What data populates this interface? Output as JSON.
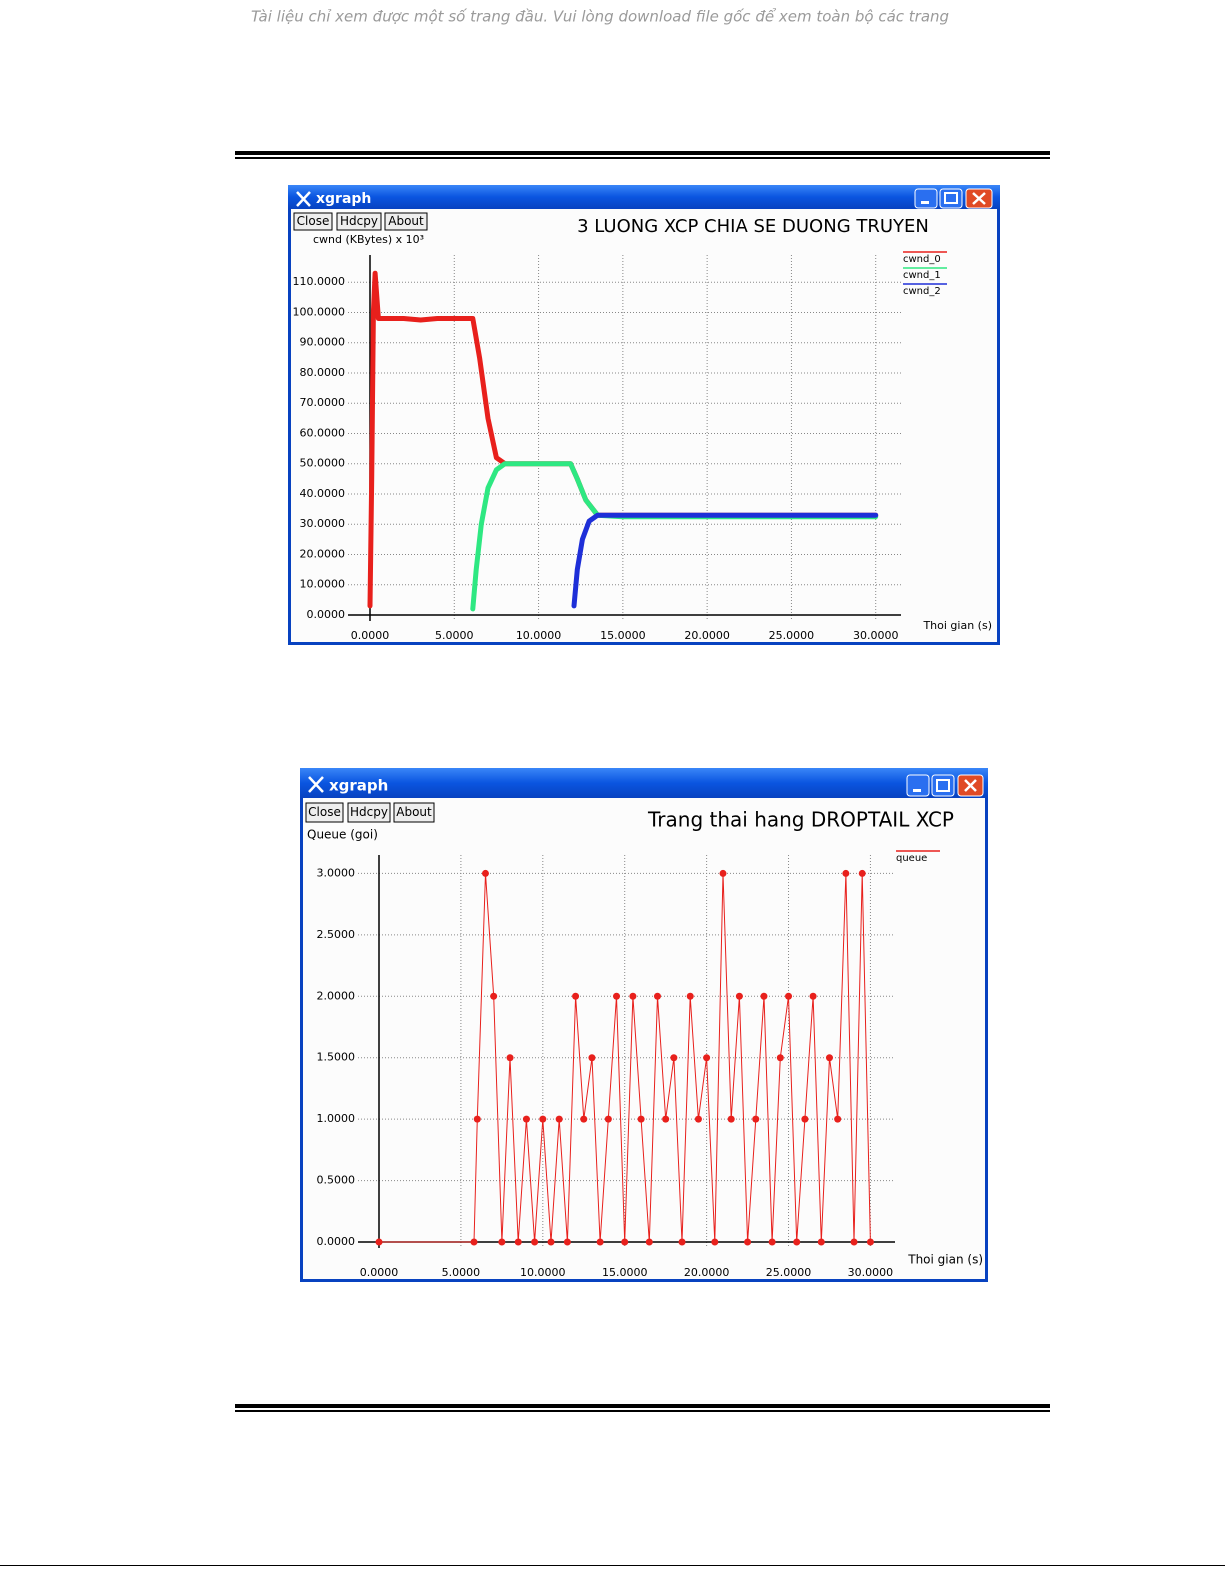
{
  "notice": "Tài liệu chỉ xem được một số trang đầu. Vui lòng download file gốc để xem toàn bộ các trang",
  "chart_data": [
    {
      "type": "line",
      "window_title": "xgraph",
      "buttons": [
        "Close",
        "Hdcpy",
        "About"
      ],
      "title": "3 LUONG XCP CHIA SE DUONG TRUYEN",
      "y_label": "cwnd (KBytes) x 10³",
      "x_label": "Thoi gian (s)",
      "grid": true,
      "markers": false,
      "legend": "top-right",
      "xlim": [
        0,
        31.5
      ],
      "ylim": [
        0,
        119
      ],
      "xticks": [
        {
          "value": 0,
          "label": "0.0000"
        },
        {
          "value": 5,
          "label": "5.0000"
        },
        {
          "value": 10,
          "label": "10.0000"
        },
        {
          "value": 15,
          "label": "15.0000"
        },
        {
          "value": 20,
          "label": "20.0000"
        },
        {
          "value": 25,
          "label": "25.0000"
        },
        {
          "value": 30,
          "label": "30.0000"
        }
      ],
      "yticks": [
        {
          "value": 0,
          "label": "0.0000"
        },
        {
          "value": 10,
          "label": "10.0000"
        },
        {
          "value": 20,
          "label": "20.0000"
        },
        {
          "value": 30,
          "label": "30.0000"
        },
        {
          "value": 40,
          "label": "40.0000"
        },
        {
          "value": 50,
          "label": "50.0000"
        },
        {
          "value": 60,
          "label": "60.0000"
        },
        {
          "value": 70,
          "label": "70.0000"
        },
        {
          "value": 80,
          "label": "80.0000"
        },
        {
          "value": 90,
          "label": "90.0000"
        },
        {
          "value": 100,
          "label": "100.0000"
        },
        {
          "value": 110,
          "label": "110.0000"
        }
      ],
      "series": [
        {
          "name": "cwnd_0",
          "color": "#e8201c",
          "x": [
            0,
            0.1,
            0.2,
            0.3,
            0.5,
            1,
            2,
            3,
            4,
            5,
            6,
            6.1,
            6.5,
            7,
            7.5,
            8,
            9,
            10,
            11,
            11.9,
            12.3,
            12.8,
            13.5,
            15,
            20,
            25,
            30
          ],
          "values": [
            3,
            45,
            100,
            113,
            98,
            98,
            98,
            97.5,
            98,
            98,
            98,
            98,
            85,
            65,
            52,
            50,
            50,
            50,
            50,
            50,
            45,
            38,
            33,
            33,
            33,
            33,
            33
          ]
        },
        {
          "name": "cwnd_1",
          "color": "#2ee882",
          "x": [
            6.1,
            6.3,
            6.6,
            7,
            7.5,
            8,
            9,
            10,
            11,
            11.9,
            12.3,
            12.8,
            13.5,
            15,
            20,
            25,
            30
          ],
          "values": [
            2,
            15,
            30,
            42,
            48,
            50,
            50,
            50,
            50,
            50,
            45,
            38,
            33,
            32.5,
            32.5,
            32.5,
            32.5
          ]
        },
        {
          "name": "cwnd_2",
          "color": "#1e2fd8",
          "x": [
            12.1,
            12.3,
            12.6,
            13,
            13.5,
            14,
            15,
            20,
            25,
            30
          ],
          "values": [
            3,
            15,
            25,
            31,
            33,
            33,
            33,
            33,
            33,
            33
          ]
        }
      ]
    },
    {
      "type": "line",
      "window_title": "xgraph",
      "buttons": [
        "Close",
        "Hdcpy",
        "About"
      ],
      "title": "Trang thai hang DROPTAIL XCP",
      "y_label": "Queue (goi)",
      "x_label": "Thoi gian (s)",
      "grid": true,
      "markers": true,
      "legend": "top-right",
      "xlim": [
        0,
        31.5
      ],
      "ylim": [
        0,
        3.15
      ],
      "xticks": [
        {
          "value": 0,
          "label": "0.0000"
        },
        {
          "value": 5,
          "label": "5.0000"
        },
        {
          "value": 10,
          "label": "10.0000"
        },
        {
          "value": 15,
          "label": "15.0000"
        },
        {
          "value": 20,
          "label": "20.0000"
        },
        {
          "value": 25,
          "label": "25.0000"
        },
        {
          "value": 30,
          "label": "30.0000"
        }
      ],
      "yticks": [
        {
          "value": 0,
          "label": "0.0000"
        },
        {
          "value": 0.5,
          "label": "0.5000"
        },
        {
          "value": 1,
          "label": "1.0000"
        },
        {
          "value": 1.5,
          "label": "1.5000"
        },
        {
          "value": 2,
          "label": "2.0000"
        },
        {
          "value": 2.5,
          "label": "2.5000"
        },
        {
          "value": 3,
          "label": "3.0000"
        }
      ],
      "series": [
        {
          "name": "queue",
          "color": "#e8201c",
          "x": [
            0,
            5.8,
            6,
            6.5,
            7,
            7.5,
            8,
            8.5,
            9,
            9.5,
            10,
            10.5,
            11,
            11.5,
            12,
            12.5,
            13,
            13.5,
            14,
            14.5,
            15,
            15.5,
            16,
            16.5,
            17,
            17.5,
            18,
            18.5,
            19,
            19.5,
            20,
            20.5,
            21,
            21.5,
            22,
            22.5,
            23,
            23.5,
            24,
            24.5,
            25,
            25.5,
            26,
            26.5,
            27,
            27.5,
            28,
            28.5,
            29,
            29.5,
            30
          ],
          "values": [
            0,
            0,
            1,
            3,
            2,
            0,
            1.5,
            0,
            1,
            0,
            1,
            0,
            1,
            0,
            2,
            1,
            1.5,
            0,
            1,
            2,
            0,
            2,
            1,
            0,
            2,
            1,
            1.5,
            0,
            2,
            1,
            1.5,
            0,
            3,
            1,
            2,
            0,
            1,
            2,
            0,
            1.5,
            2,
            0,
            1,
            2,
            0,
            1.5,
            1,
            3,
            0,
            3,
            0
          ]
        }
      ]
    }
  ]
}
